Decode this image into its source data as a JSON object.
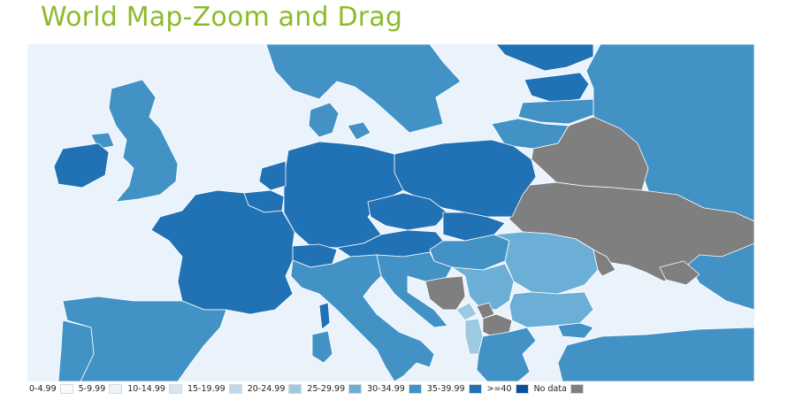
{
  "title": "World Map-Zoom and Drag",
  "colors": {
    "ocean": "#eaf3fb",
    "border": "#ffffff",
    "no_data": "#7f7f7f"
  },
  "legend": [
    {
      "label": "0-4.99",
      "color": "#f7fbff"
    },
    {
      "label": "5-9.99",
      "color": "#ebf3fb"
    },
    {
      "label": "10-14.99",
      "color": "#d7e6f4"
    },
    {
      "label": "15-19.99",
      "color": "#bfd8ec"
    },
    {
      "label": "20-24.99",
      "color": "#9ecae1"
    },
    {
      "label": "25-29.99",
      "color": "#6baed6"
    },
    {
      "label": "30-34.99",
      "color": "#4292c6"
    },
    {
      "label": "35-39.99",
      "color": "#2171b5"
    },
    {
      "label": ">=40",
      "color": "#08519c"
    },
    {
      "label": "No data",
      "color": "#7f7f7f"
    }
  ]
}
